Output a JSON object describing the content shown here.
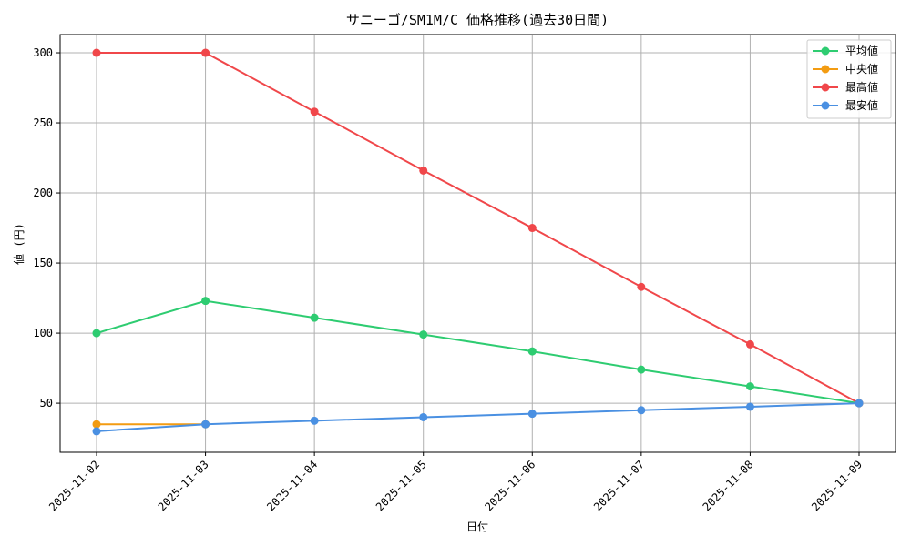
{
  "chart_data": {
    "type": "line",
    "title": "サニーゴ/SM1M/C 価格推移(過去30日間)",
    "xlabel": "日付",
    "ylabel": "値 (円)",
    "categories": [
      "2025-11-02",
      "2025-11-03",
      "2025-11-04",
      "2025-11-05",
      "2025-11-06",
      "2025-11-07",
      "2025-11-08",
      "2025-11-09"
    ],
    "ylim": [
      15,
      313
    ],
    "yticks": [
      50,
      100,
      150,
      200,
      250,
      300
    ],
    "grid": true,
    "legend_position": "top-right",
    "series": [
      {
        "name": "平均値",
        "color": "#2ecc71",
        "values": [
          100,
          123,
          111,
          99,
          87,
          74,
          62,
          50
        ]
      },
      {
        "name": "中央値",
        "color": "#f39c12",
        "values": [
          35,
          35,
          null,
          null,
          null,
          null,
          null,
          null
        ]
      },
      {
        "name": "最高値",
        "color": "#f0474a",
        "values": [
          300,
          300,
          258,
          216,
          175,
          133,
          92,
          50
        ]
      },
      {
        "name": "最安値",
        "color": "#4a90e2",
        "values": [
          30,
          35,
          37.5,
          40,
          42.5,
          45,
          47.5,
          50
        ]
      }
    ]
  }
}
